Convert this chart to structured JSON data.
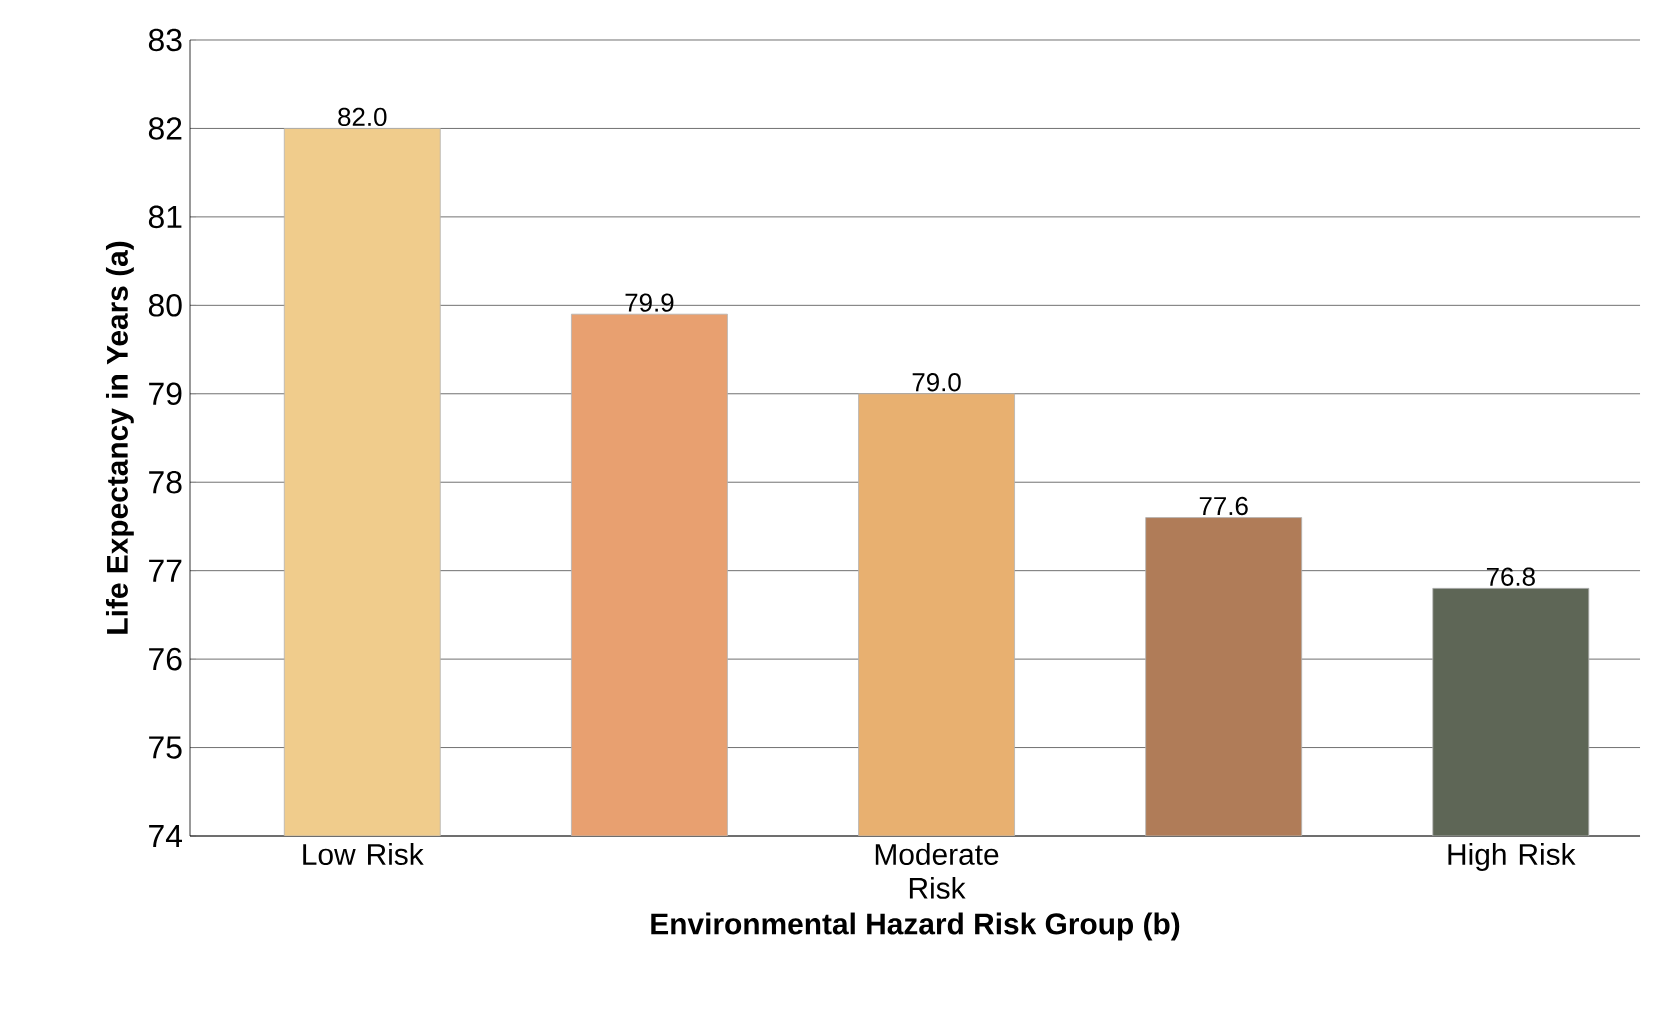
{
  "chart_data": {
    "type": "bar",
    "xlabel": "Environmental Hazard Risk Group (b)",
    "ylabel": "Life Expectancy in Years (a)",
    "categories": [
      "Low Risk",
      null,
      "Moderate Risk",
      null,
      "High Risk"
    ],
    "values": [
      82.0,
      79.9,
      79.0,
      77.6,
      76.8
    ],
    "colors": [
      "#f0cc8c",
      "#e8a070",
      "#e8b070",
      "#b07c58",
      "#5e6656"
    ],
    "ylim": [
      74,
      83
    ],
    "yticks": [
      74,
      75,
      76,
      77,
      78,
      79,
      80,
      81,
      82,
      83
    ],
    "value_labels": [
      "82.0",
      "79.9",
      "79.0",
      "77.6",
      "76.8"
    ],
    "grid": "y"
  }
}
